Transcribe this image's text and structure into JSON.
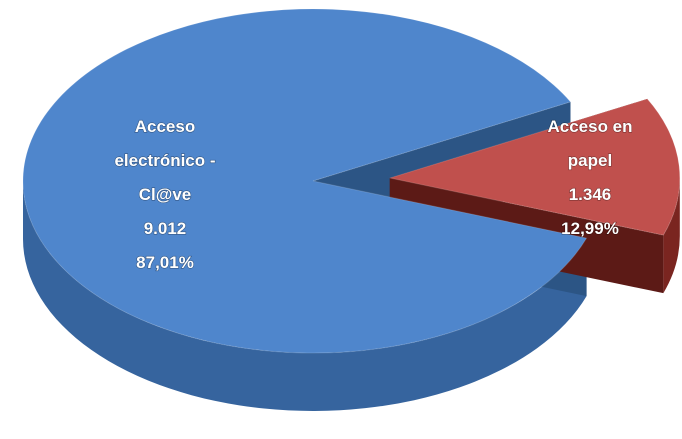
{
  "chart_data": {
    "type": "pie",
    "style": "3d-exploded",
    "slices": [
      {
        "label_lines": [
          "Acceso",
          "electrónico -",
          "Cl@ve"
        ],
        "value": 9012,
        "value_text": "9.012",
        "percent": 87.01,
        "percent_text": "87,01%",
        "color": "#4f86cc",
        "side_color": "#36649e",
        "inner_color": "#2c5585"
      },
      {
        "label_lines": [
          "Acceso en",
          "papel"
        ],
        "value": 1346,
        "value_text": "1.346",
        "percent": 12.99,
        "percent_text": "12,99%",
        "color": "#c0504d",
        "side_color": "#7a2520",
        "inner_color": "#5c1a16"
      }
    ]
  }
}
